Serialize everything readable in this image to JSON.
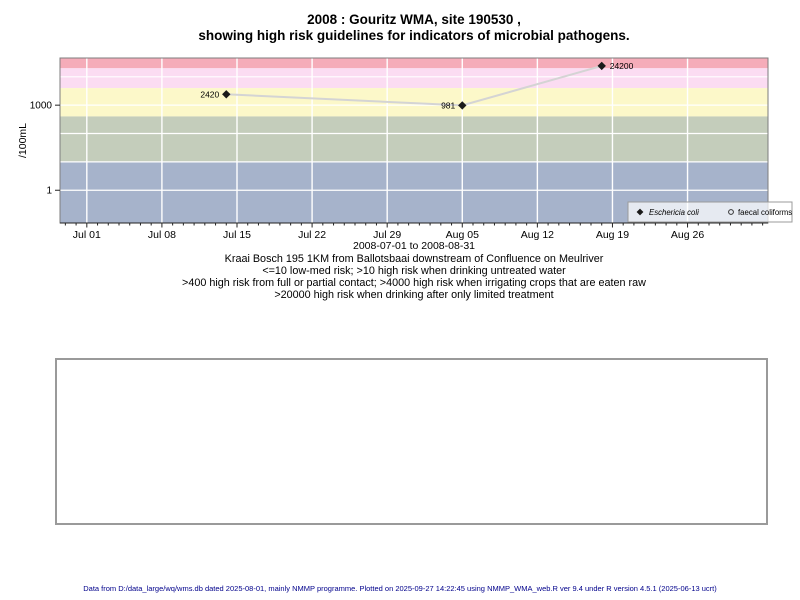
{
  "title": {
    "line1": "2008 : Gouritz WMA, site 190530 ,",
    "line2": "showing high risk guidelines for indicators of microbial pathogens."
  },
  "chart_data": {
    "type": "line",
    "title": "2008 : Gouritz WMA, site 190530 , showing high risk guidelines for indicators of microbial pathogens.",
    "ylabel": "/100mL",
    "y_scale": "log10",
    "ylim": [
      0.07,
      46000
    ],
    "x_range": {
      "start": "2008-06-28T12:00:00",
      "end": "2008-09-02T12:00:00"
    },
    "x_period_label": "2008-07-01 to 2008-08-31",
    "x_ticks": [
      {
        "date": "2008-07-01",
        "label": "Jul 01"
      },
      {
        "date": "2008-07-08",
        "label": "Jul 08"
      },
      {
        "date": "2008-07-15",
        "label": "Jul 15"
      },
      {
        "date": "2008-07-22",
        "label": "Jul 22"
      },
      {
        "date": "2008-07-29",
        "label": "Jul 29"
      },
      {
        "date": "2008-08-05",
        "label": "Aug 05"
      },
      {
        "date": "2008-08-12",
        "label": "Aug 12"
      },
      {
        "date": "2008-08-19",
        "label": "Aug 19"
      },
      {
        "date": "2008-08-26",
        "label": "Aug 26"
      }
    ],
    "y_ticks": [
      {
        "value": 1000,
        "label": "1000"
      },
      {
        "value": 1,
        "label": "1"
      }
    ],
    "h_gridlines": [
      10000,
      1000,
      100,
      10,
      1
    ],
    "grid_color": "#ffffff",
    "risk_bands": [
      {
        "name": "risk->20000-drinking-limited-treatment",
        "from": 20000,
        "to": 46000,
        "color": "#f5acb9"
      },
      {
        "name": "risk-4000-20000-irrigating-crops",
        "from": 4000,
        "to": 20000,
        "color": "#fbdcf2"
      },
      {
        "name": "risk-400-4000-contact",
        "from": 400,
        "to": 4000,
        "color": "#fcf8c9"
      },
      {
        "name": "risk-10-400-untreated-water",
        "from": 10,
        "to": 400,
        "color": "#c4cdbb"
      },
      {
        "name": "low-med-risk-under-10",
        "from": 0.07,
        "to": 10,
        "color": "#a6b3cb"
      }
    ],
    "series": [
      {
        "name": "Eschericia coli",
        "marker": "filled-diamond",
        "marker_color": "#1a1a1a",
        "line_color": "#d4d4d4",
        "points": [
          {
            "date": "2008-07-14",
            "value": 2420,
            "label": "2420",
            "label_side": "left"
          },
          {
            "date": "2008-08-05",
            "value": 981,
            "label": "981",
            "label_side": "left"
          },
          {
            "date": "2008-08-18",
            "value": 24200,
            "label": "24200",
            "label_side": "right"
          }
        ]
      },
      {
        "name": "faecal coliforms",
        "marker": "open-circle",
        "marker_color": "#333333",
        "line_color": "#d4d4d4",
        "points": []
      }
    ],
    "legend_position": "bottom-right"
  },
  "captions": {
    "range": "2008-07-01 to 2008-08-31",
    "line1": "Kraai Bosch 195 1KM from Ballotsbaai downstream of Confluence on Meulriver",
    "line2": "<=10 low-med risk; >10 high risk when drinking untreated water",
    "line3": ">400 high risk from full or partial contact; >4000 high risk when irrigating crops that are eaten raw",
    "line4": ">20000 high risk when drinking after only limited treatment"
  },
  "footer": {
    "text": "Data from D:/data_large/wq/wms.db dated 2025-08-01, mainly NMMP programme. Plotted on 2025-09-27 14:22:45 using NMMP_WMA_web.R ver 9.4 under R version 4.5.1 (2025-06-13 ucrt)",
    "color": "#00008B"
  }
}
